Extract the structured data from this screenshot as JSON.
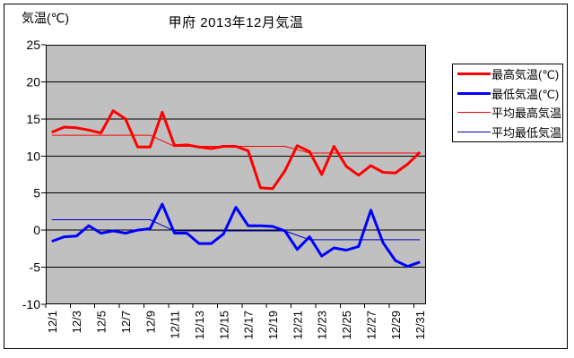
{
  "title": "甲府 2013年12月気温",
  "y_axis": {
    "label": "気温(℃)",
    "ticks": [
      25,
      20,
      15,
      10,
      5,
      0,
      -5,
      -10
    ],
    "min": -10,
    "max": 25
  },
  "x_axis": {
    "tick_labels": [
      "12/1",
      "12/3",
      "12/5",
      "12/7",
      "12/9",
      "12/11",
      "12/13",
      "12/15",
      "12/17",
      "12/19",
      "12/21",
      "12/23",
      "12/25",
      "12/27",
      "12/29",
      "12/31"
    ]
  },
  "colors": {
    "plot_background": "#c0c0c0",
    "grid": "#000000",
    "frame": "#000000",
    "max_temp": "#ff0000",
    "min_temp": "#0000ff",
    "avg_max": "#ff0000",
    "avg_min": "#0000c0"
  },
  "chart_data": {
    "type": "line",
    "title": "甲府 2013年12月気温",
    "xlabel": "",
    "ylabel": "気温(℃)",
    "ylim": [
      -10,
      25
    ],
    "grid": true,
    "legend_position": "right",
    "x": [
      "12/1",
      "12/2",
      "12/3",
      "12/4",
      "12/5",
      "12/6",
      "12/7",
      "12/8",
      "12/9",
      "12/10",
      "12/11",
      "12/12",
      "12/13",
      "12/14",
      "12/15",
      "12/16",
      "12/17",
      "12/18",
      "12/19",
      "12/20",
      "12/21",
      "12/22",
      "12/23",
      "12/24",
      "12/25",
      "12/26",
      "12/27",
      "12/28",
      "12/29",
      "12/30",
      "12/31"
    ],
    "series": [
      {
        "name": "最高気温(℃)",
        "color": "#ff0000",
        "width": 3,
        "values": [
          13.2,
          13.9,
          13.8,
          13.5,
          13.1,
          16.1,
          15.0,
          11.2,
          11.2,
          15.9,
          11.4,
          11.5,
          11.2,
          11.0,
          11.3,
          11.3,
          10.7,
          5.7,
          5.6,
          8.0,
          11.4,
          10.6,
          7.5,
          11.3,
          8.6,
          7.4,
          8.7,
          7.8,
          7.7,
          8.9,
          10.5
        ]
      },
      {
        "name": "最低気温(℃)",
        "color": "#0000ff",
        "width": 3,
        "values": [
          -1.5,
          -0.9,
          -0.8,
          0.6,
          -0.4,
          -0.1,
          -0.4,
          0.0,
          0.2,
          3.5,
          -0.4,
          -0.4,
          -1.8,
          -1.8,
          -0.5,
          3.1,
          0.6,
          0.6,
          0.5,
          -0.1,
          -2.6,
          -0.9,
          -3.5,
          -2.4,
          -2.7,
          -2.2,
          2.7,
          -1.7,
          -4.1,
          -4.9,
          -4.3
        ]
      },
      {
        "name": "平均最高気温",
        "color": "#ff0000",
        "width": 1,
        "values": [
          12.8,
          12.8,
          12.8,
          12.8,
          12.8,
          12.8,
          12.8,
          12.8,
          12.8,
          12.05,
          11.3,
          11.3,
          11.3,
          11.3,
          11.3,
          11.3,
          11.3,
          11.3,
          11.3,
          11.3,
          10.85,
          10.4,
          10.4,
          10.4,
          10.4,
          10.4,
          10.4,
          10.4,
          10.4,
          10.4,
          10.4
        ]
      },
      {
        "name": "平均最低気温",
        "color": "#0000c0",
        "width": 1,
        "values": [
          1.4,
          1.4,
          1.4,
          1.4,
          1.4,
          1.4,
          1.4,
          1.4,
          1.4,
          0.65,
          -0.1,
          -0.1,
          -0.1,
          -0.1,
          -0.1,
          -0.1,
          -0.1,
          -0.1,
          -0.1,
          -0.1,
          -0.7,
          -1.3,
          -1.3,
          -1.3,
          -1.3,
          -1.3,
          -1.3,
          -1.3,
          -1.3,
          -1.3,
          -1.3
        ]
      }
    ]
  }
}
